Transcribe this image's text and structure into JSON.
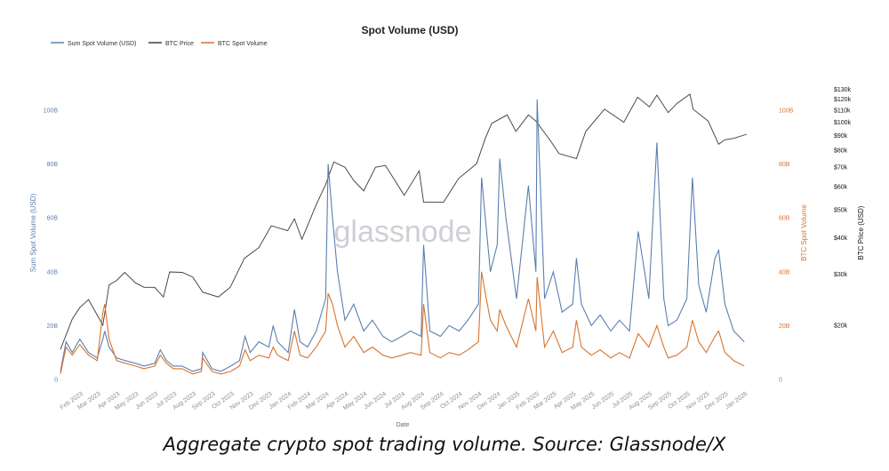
{
  "caption": "Aggregate crypto spot trading volume. Source: Glassnode/X",
  "watermark": "glassnode",
  "chart_data": {
    "type": "line",
    "title": "Spot Volume (USD)",
    "xlabel": "Date",
    "ylabel_left": "Sum Spot Volume (USD)",
    "ylabel_right_1": "BTC Spot Volume",
    "ylabel_right_2": "BTC Price (USD)",
    "legend_position": "top-left",
    "grid": false,
    "colors": {
      "sum_volume": "#5b7fb0",
      "btc_price": "#3a3a3a",
      "btc_volume": "#d8742e",
      "left_axis": "#5b7fb0",
      "right_axis_1": "#d8742e",
      "right_axis_2": "#111111"
    },
    "y_left": {
      "ticks": [
        0,
        20,
        40,
        60,
        80,
        100
      ],
      "tick_labels": [
        "0",
        "20B",
        "40B",
        "60B",
        "80B",
        "100B"
      ],
      "range": [
        0,
        100
      ]
    },
    "y_right_volume": {
      "ticks": [
        0,
        20,
        40,
        60,
        80,
        100
      ],
      "tick_labels": [
        "0",
        "20B",
        "40B",
        "60B",
        "80B",
        "100B"
      ],
      "range": [
        0,
        100
      ]
    },
    "y_right_price": {
      "scale": "log",
      "ticks": [
        20000,
        30000,
        40000,
        50000,
        60000,
        70000,
        80000,
        90000,
        100000,
        110000,
        120000,
        130000
      ],
      "tick_labels": [
        "$20k",
        "$30k",
        "$40k",
        "$50k",
        "$60k",
        "$70k",
        "$80k",
        "$90k",
        "$100k",
        "$110k",
        "$120k",
        "$130k"
      ],
      "range": [
        13000,
        135000
      ]
    },
    "x_tick_labels": [
      "Feb 2023",
      "Mar 2023",
      "Apr 2023",
      "May 2023",
      "Jun 2023",
      "Jul 2023",
      "Aug 2023",
      "Sep 2023",
      "Oct 2023",
      "Nov 2023",
      "Dec 2023",
      "Jan 2024",
      "Feb 2024",
      "Mar 2024",
      "Apr 2024",
      "May 2024",
      "Jun 2024",
      "Jul 2024",
      "Aug 2024",
      "Sep 2024",
      "Oct 2024",
      "Nov 2024",
      "Dec 2024",
      "Jan 2025",
      "Feb 2025",
      "Mar 2025",
      "Apr 2025",
      "May 2025",
      "Jun 2025",
      "Jul 2025",
      "Aug 2025",
      "Sep 2025",
      "Oct 2025",
      "Nov 2025",
      "Dec 2025",
      "Jan 2026"
    ],
    "x_range": [
      "2023-01-01",
      "2026-01-05"
    ],
    "series": [
      {
        "name": "Sum Spot Volume (USD)",
        "axis": "left",
        "unit": "B USD",
        "points": [
          [
            "2023-01-01",
            3
          ],
          [
            "2023-01-10",
            14
          ],
          [
            "2023-01-20",
            10
          ],
          [
            "2023-02-01",
            15
          ],
          [
            "2023-02-15",
            10
          ],
          [
            "2023-03-01",
            8
          ],
          [
            "2023-03-10",
            15
          ],
          [
            "2023-03-13",
            18
          ],
          [
            "2023-03-20",
            12
          ],
          [
            "2023-04-01",
            8
          ],
          [
            "2023-04-15",
            7
          ],
          [
            "2023-05-01",
            6
          ],
          [
            "2023-05-15",
            5
          ],
          [
            "2023-06-01",
            6
          ],
          [
            "2023-06-10",
            11
          ],
          [
            "2023-06-20",
            7
          ],
          [
            "2023-07-01",
            5
          ],
          [
            "2023-07-15",
            5
          ],
          [
            "2023-08-01",
            3
          ],
          [
            "2023-08-15",
            4
          ],
          [
            "2023-08-17",
            10
          ],
          [
            "2023-09-01",
            4
          ],
          [
            "2023-09-15",
            3
          ],
          [
            "2023-10-01",
            5
          ],
          [
            "2023-10-15",
            7
          ],
          [
            "2023-10-24",
            16
          ],
          [
            "2023-11-01",
            10
          ],
          [
            "2023-11-15",
            14
          ],
          [
            "2023-12-01",
            12
          ],
          [
            "2023-12-08",
            20
          ],
          [
            "2023-12-15",
            14
          ],
          [
            "2024-01-01",
            10
          ],
          [
            "2024-01-11",
            26
          ],
          [
            "2024-01-20",
            14
          ],
          [
            "2024-02-01",
            12
          ],
          [
            "2024-02-15",
            18
          ],
          [
            "2024-03-01",
            30
          ],
          [
            "2024-03-05",
            80
          ],
          [
            "2024-03-12",
            60
          ],
          [
            "2024-03-20",
            40
          ],
          [
            "2024-04-01",
            22
          ],
          [
            "2024-04-15",
            28
          ],
          [
            "2024-05-01",
            18
          ],
          [
            "2024-05-15",
            22
          ],
          [
            "2024-06-01",
            16
          ],
          [
            "2024-06-15",
            14
          ],
          [
            "2024-07-01",
            16
          ],
          [
            "2024-07-15",
            18
          ],
          [
            "2024-08-01",
            16
          ],
          [
            "2024-08-05",
            50
          ],
          [
            "2024-08-15",
            18
          ],
          [
            "2024-09-01",
            16
          ],
          [
            "2024-09-15",
            20
          ],
          [
            "2024-10-01",
            18
          ],
          [
            "2024-10-15",
            22
          ],
          [
            "2024-11-01",
            28
          ],
          [
            "2024-11-06",
            75
          ],
          [
            "2024-11-12",
            60
          ],
          [
            "2024-11-20",
            40
          ],
          [
            "2024-12-01",
            50
          ],
          [
            "2024-12-05",
            82
          ],
          [
            "2024-12-15",
            60
          ],
          [
            "2025-01-01",
            30
          ],
          [
            "2025-01-20",
            72
          ],
          [
            "2025-02-01",
            40
          ],
          [
            "2025-02-03",
            104
          ],
          [
            "2025-02-15",
            30
          ],
          [
            "2025-03-01",
            40
          ],
          [
            "2025-03-15",
            25
          ],
          [
            "2025-04-01",
            28
          ],
          [
            "2025-04-07",
            45
          ],
          [
            "2025-04-15",
            28
          ],
          [
            "2025-05-01",
            20
          ],
          [
            "2025-05-15",
            24
          ],
          [
            "2025-06-01",
            18
          ],
          [
            "2025-06-15",
            22
          ],
          [
            "2025-07-01",
            18
          ],
          [
            "2025-07-15",
            55
          ],
          [
            "2025-08-01",
            30
          ],
          [
            "2025-08-14",
            88
          ],
          [
            "2025-08-25",
            30
          ],
          [
            "2025-09-01",
            20
          ],
          [
            "2025-09-15",
            22
          ],
          [
            "2025-10-01",
            30
          ],
          [
            "2025-10-10",
            75
          ],
          [
            "2025-10-20",
            35
          ],
          [
            "2025-11-01",
            25
          ],
          [
            "2025-11-15",
            45
          ],
          [
            "2025-11-21",
            48
          ],
          [
            "2025-12-01",
            28
          ],
          [
            "2025-12-15",
            18
          ],
          [
            "2026-01-01",
            14
          ]
        ]
      },
      {
        "name": "BTC Price",
        "axis": "right_price",
        "unit": "USD",
        "points": [
          [
            "2023-01-01",
            16500
          ],
          [
            "2023-01-20",
            21000
          ],
          [
            "2023-02-01",
            23000
          ],
          [
            "2023-02-15",
            24500
          ],
          [
            "2023-03-10",
            20000
          ],
          [
            "2023-03-20",
            27500
          ],
          [
            "2023-04-01",
            28500
          ],
          [
            "2023-04-14",
            30400
          ],
          [
            "2023-05-01",
            28000
          ],
          [
            "2023-05-15",
            27000
          ],
          [
            "2023-06-01",
            27000
          ],
          [
            "2023-06-15",
            25000
          ],
          [
            "2023-06-25",
            30500
          ],
          [
            "2023-07-15",
            30400
          ],
          [
            "2023-08-01",
            29300
          ],
          [
            "2023-08-17",
            26000
          ],
          [
            "2023-09-11",
            25000
          ],
          [
            "2023-09-30",
            27000
          ],
          [
            "2023-10-23",
            34000
          ],
          [
            "2023-11-15",
            37000
          ],
          [
            "2023-12-05",
            44000
          ],
          [
            "2023-12-31",
            42300
          ],
          [
            "2024-01-11",
            46500
          ],
          [
            "2024-01-23",
            39500
          ],
          [
            "2024-02-15",
            52000
          ],
          [
            "2024-03-01",
            61000
          ],
          [
            "2024-03-14",
            73000
          ],
          [
            "2024-04-01",
            70000
          ],
          [
            "2024-04-15",
            63000
          ],
          [
            "2024-05-01",
            58000
          ],
          [
            "2024-05-20",
            70000
          ],
          [
            "2024-06-05",
            71000
          ],
          [
            "2024-07-05",
            56000
          ],
          [
            "2024-07-29",
            68000
          ],
          [
            "2024-08-05",
            53000
          ],
          [
            "2024-09-06",
            53000
          ],
          [
            "2024-09-30",
            64000
          ],
          [
            "2024-10-29",
            72000
          ],
          [
            "2024-11-12",
            88000
          ],
          [
            "2024-11-22",
            99000
          ],
          [
            "2024-12-17",
            106000
          ],
          [
            "2024-12-31",
            93000
          ],
          [
            "2025-01-20",
            106000
          ],
          [
            "2025-02-01",
            101000
          ],
          [
            "2025-02-25",
            86000
          ],
          [
            "2025-03-10",
            78000
          ],
          [
            "2025-04-07",
            75000
          ],
          [
            "2025-04-22",
            93000
          ],
          [
            "2025-05-22",
            111000
          ],
          [
            "2025-06-22",
            100000
          ],
          [
            "2025-07-14",
            122000
          ],
          [
            "2025-08-02",
            113000
          ],
          [
            "2025-08-14",
            124000
          ],
          [
            "2025-09-01",
            108000
          ],
          [
            "2025-09-15",
            116000
          ],
          [
            "2025-10-06",
            125000
          ],
          [
            "2025-10-11",
            111000
          ],
          [
            "2025-11-04",
            101000
          ],
          [
            "2025-11-21",
            84000
          ],
          [
            "2025-12-01",
            87000
          ],
          [
            "2025-12-15",
            88000
          ],
          [
            "2026-01-05",
            91000
          ]
        ]
      },
      {
        "name": "BTC Spot Volume",
        "axis": "right_volume",
        "unit": "B USD",
        "points": [
          [
            "2023-01-01",
            2
          ],
          [
            "2023-01-10",
            12
          ],
          [
            "2023-01-20",
            9
          ],
          [
            "2023-02-01",
            13
          ],
          [
            "2023-02-15",
            9
          ],
          [
            "2023-03-01",
            7
          ],
          [
            "2023-03-10",
            25
          ],
          [
            "2023-03-13",
            28
          ],
          [
            "2023-03-20",
            15
          ],
          [
            "2023-04-01",
            7
          ],
          [
            "2023-04-15",
            6
          ],
          [
            "2023-05-01",
            5
          ],
          [
            "2023-05-15",
            4
          ],
          [
            "2023-06-01",
            5
          ],
          [
            "2023-06-10",
            9
          ],
          [
            "2023-06-20",
            6
          ],
          [
            "2023-07-01",
            4
          ],
          [
            "2023-07-15",
            4
          ],
          [
            "2023-08-01",
            2
          ],
          [
            "2023-08-15",
            3
          ],
          [
            "2023-08-17",
            8
          ],
          [
            "2023-09-01",
            3
          ],
          [
            "2023-09-15",
            2
          ],
          [
            "2023-10-01",
            3
          ],
          [
            "2023-10-15",
            5
          ],
          [
            "2023-10-24",
            11
          ],
          [
            "2023-11-01",
            7
          ],
          [
            "2023-11-15",
            9
          ],
          [
            "2023-12-01",
            8
          ],
          [
            "2023-12-08",
            12
          ],
          [
            "2023-12-15",
            9
          ],
          [
            "2024-01-01",
            7
          ],
          [
            "2024-01-11",
            18
          ],
          [
            "2024-01-20",
            9
          ],
          [
            "2024-02-01",
            8
          ],
          [
            "2024-02-15",
            12
          ],
          [
            "2024-03-01",
            18
          ],
          [
            "2024-03-05",
            32
          ],
          [
            "2024-03-12",
            28
          ],
          [
            "2024-03-20",
            20
          ],
          [
            "2024-04-01",
            12
          ],
          [
            "2024-04-15",
            16
          ],
          [
            "2024-05-01",
            10
          ],
          [
            "2024-05-15",
            12
          ],
          [
            "2024-06-01",
            9
          ],
          [
            "2024-06-15",
            8
          ],
          [
            "2024-07-01",
            9
          ],
          [
            "2024-07-15",
            10
          ],
          [
            "2024-08-01",
            9
          ],
          [
            "2024-08-05",
            28
          ],
          [
            "2024-08-15",
            10
          ],
          [
            "2024-09-01",
            8
          ],
          [
            "2024-09-15",
            10
          ],
          [
            "2024-10-01",
            9
          ],
          [
            "2024-10-15",
            11
          ],
          [
            "2024-11-01",
            14
          ],
          [
            "2024-11-06",
            40
          ],
          [
            "2024-11-12",
            32
          ],
          [
            "2024-11-20",
            22
          ],
          [
            "2024-12-01",
            18
          ],
          [
            "2024-12-05",
            26
          ],
          [
            "2024-12-15",
            20
          ],
          [
            "2025-01-01",
            12
          ],
          [
            "2025-01-20",
            30
          ],
          [
            "2025-02-01",
            18
          ],
          [
            "2025-02-03",
            38
          ],
          [
            "2025-02-15",
            12
          ],
          [
            "2025-03-01",
            18
          ],
          [
            "2025-03-15",
            10
          ],
          [
            "2025-04-01",
            12
          ],
          [
            "2025-04-07",
            22
          ],
          [
            "2025-04-15",
            12
          ],
          [
            "2025-05-01",
            9
          ],
          [
            "2025-05-15",
            11
          ],
          [
            "2025-06-01",
            8
          ],
          [
            "2025-06-15",
            10
          ],
          [
            "2025-07-01",
            8
          ],
          [
            "2025-07-15",
            17
          ],
          [
            "2025-08-01",
            12
          ],
          [
            "2025-08-14",
            20
          ],
          [
            "2025-08-25",
            12
          ],
          [
            "2025-09-01",
            8
          ],
          [
            "2025-09-15",
            9
          ],
          [
            "2025-10-01",
            12
          ],
          [
            "2025-10-10",
            22
          ],
          [
            "2025-10-20",
            14
          ],
          [
            "2025-11-01",
            10
          ],
          [
            "2025-11-15",
            16
          ],
          [
            "2025-11-21",
            18
          ],
          [
            "2025-12-01",
            10
          ],
          [
            "2025-12-15",
            7
          ],
          [
            "2026-01-01",
            5
          ]
        ]
      }
    ]
  }
}
